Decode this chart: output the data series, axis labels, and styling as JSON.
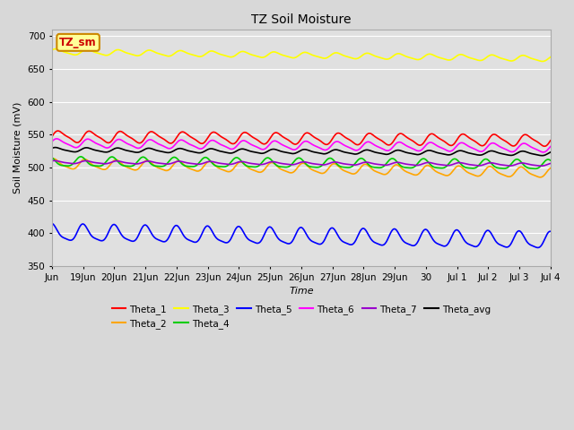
{
  "title": "TZ Soil Moisture",
  "xlabel": "Time",
  "ylabel": "Soil Moisture (mV)",
  "ylim": [
    350,
    710
  ],
  "yticks": [
    350,
    400,
    450,
    500,
    550,
    600,
    650,
    700
  ],
  "bg_color": "#d8d8d8",
  "plot_bg": "#e0e0e0",
  "series": [
    {
      "name": "Theta_1",
      "color": "#ff0000",
      "base": 547,
      "trend": -0.4,
      "amp": 8,
      "freq": 16,
      "phase": 0.0
    },
    {
      "name": "Theta_2",
      "color": "#ffa500",
      "base": 505,
      "trend": -0.9,
      "amp": 7,
      "freq": 16,
      "phase": 1.0
    },
    {
      "name": "Theta_3",
      "color": "#ffff00",
      "base": 676,
      "trend": -0.7,
      "amp": 4,
      "freq": 16,
      "phase": 0.5
    },
    {
      "name": "Theta_4",
      "color": "#00cc00",
      "base": 508,
      "trend": -0.3,
      "amp": 7,
      "freq": 16,
      "phase": 2.0
    },
    {
      "name": "Theta_5",
      "color": "#0000ff",
      "base": 400,
      "trend": -0.8,
      "amp": 12,
      "freq": 16,
      "phase": 1.5
    },
    {
      "name": "Theta_6",
      "color": "#ff00ff",
      "base": 537,
      "trend": -0.5,
      "amp": 6,
      "freq": 16,
      "phase": 0.3
    },
    {
      "name": "Theta_7",
      "color": "#9900cc",
      "base": 508,
      "trend": -0.25,
      "amp": 2,
      "freq": 16,
      "phase": 0.8
    },
    {
      "name": "Theta_avg",
      "color": "#000000",
      "base": 527,
      "trend": -0.4,
      "amp": 3,
      "freq": 16,
      "phase": 0.6
    }
  ],
  "n_points": 480,
  "x_days": 15,
  "xtick_labels": [
    "Jun",
    "19Jun",
    "20Jun",
    "21Jun",
    "22Jun",
    "23Jun",
    "24Jun",
    "25Jun",
    "26Jun",
    "27Jun",
    "28Jun",
    "29Jun",
    "30",
    "Jul 1",
    "Jul 2",
    "Jul 3",
    "Jul 4"
  ],
  "xtick_positions": [
    0,
    1,
    2,
    3,
    4,
    5,
    6,
    7,
    8,
    9,
    10,
    11,
    12,
    13,
    14,
    15,
    16
  ],
  "label_box_color": "#ffff99",
  "label_box_text": "TZ_sm",
  "label_box_text_color": "#cc0000",
  "label_box_edge_color": "#cc8800"
}
